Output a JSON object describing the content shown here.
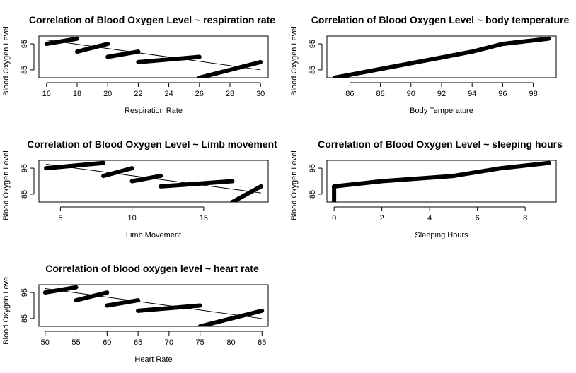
{
  "chart_data": [
    {
      "type": "scatter",
      "title": "Correlation of Blood Oxygen Level ~ respiration rate",
      "xlabel": "Respiration Rate",
      "ylabel": "Blood Oxygen Level",
      "xlim": [
        15.5,
        30.5
      ],
      "ylim": [
        82,
        98
      ],
      "xticks": [
        16,
        18,
        20,
        22,
        24,
        26,
        28,
        30
      ],
      "yticks": [
        85,
        95
      ],
      "series": [
        {
          "x": [
            16,
            18
          ],
          "y": [
            95,
            97
          ]
        },
        {
          "x": [
            18,
            20
          ],
          "y": [
            92,
            95
          ]
        },
        {
          "x": [
            20,
            22
          ],
          "y": [
            90,
            92
          ]
        },
        {
          "x": [
            22,
            26
          ],
          "y": [
            88,
            90
          ]
        },
        {
          "x": [
            26,
            30
          ],
          "y": [
            82,
            88
          ]
        }
      ],
      "trend": {
        "x": [
          16,
          30
        ],
        "y": [
          96.5,
          85
        ]
      }
    },
    {
      "type": "scatter",
      "title": "Correlation of Blood Oxygen Level ~ body temperature",
      "xlabel": "Body Temperature",
      "ylabel": "Blood Oxygen Level",
      "xlim": [
        84.5,
        99.5
      ],
      "ylim": [
        82,
        98
      ],
      "xticks": [
        86,
        88,
        90,
        92,
        94,
        96,
        98
      ],
      "yticks": [
        85,
        95
      ],
      "series": [
        {
          "x": [
            85,
            94,
            96,
            99
          ],
          "y": [
            82,
            92,
            95,
            97
          ]
        }
      ]
    },
    {
      "type": "scatter",
      "title": "Correlation of Blood Oxygen Level ~ Limb movement",
      "xlabel": "Limb Movement",
      "ylabel": "Blood Oxygen Level",
      "xlim": [
        3.5,
        19.5
      ],
      "ylim": [
        82,
        98
      ],
      "xticks": [
        5,
        10,
        15
      ],
      "yticks": [
        85,
        95
      ],
      "series": [
        {
          "x": [
            4,
            8
          ],
          "y": [
            95,
            97
          ]
        },
        {
          "x": [
            8,
            10
          ],
          "y": [
            92,
            95
          ]
        },
        {
          "x": [
            10,
            12
          ],
          "y": [
            90,
            92
          ]
        },
        {
          "x": [
            12,
            17
          ],
          "y": [
            88,
            90
          ]
        },
        {
          "x": [
            17,
            19
          ],
          "y": [
            82,
            88
          ]
        }
      ],
      "trend": {
        "x": [
          4,
          19
        ],
        "y": [
          96.5,
          85.5
        ]
      }
    },
    {
      "type": "scatter",
      "title": "Correlation of Blood Oxygen Level ~ sleeping hours",
      "xlabel": "Sleeping Hours",
      "ylabel": "Blood Oxygen Level",
      "xlim": [
        -0.3,
        9.3
      ],
      "ylim": [
        82,
        98
      ],
      "xticks": [
        0,
        2,
        4,
        6,
        8
      ],
      "yticks": [
        85,
        95
      ],
      "series": [
        {
          "x": [
            0,
            0
          ],
          "y": [
            82,
            88
          ]
        },
        {
          "x": [
            0,
            2,
            5,
            7,
            9
          ],
          "y": [
            88,
            90,
            92,
            95,
            97
          ]
        }
      ]
    },
    {
      "type": "scatter",
      "title": "Correlation of blood oxygen level ~ heart rate",
      "xlabel": "Heart Rate",
      "ylabel": "Blood Oxygen Level",
      "xlim": [
        49,
        86
      ],
      "ylim": [
        82,
        98
      ],
      "xticks": [
        50,
        55,
        60,
        65,
        70,
        75,
        80,
        85
      ],
      "yticks": [
        85,
        95
      ],
      "series": [
        {
          "x": [
            50,
            55
          ],
          "y": [
            95,
            97
          ]
        },
        {
          "x": [
            55,
            60
          ],
          "y": [
            92,
            95
          ]
        },
        {
          "x": [
            60,
            65
          ],
          "y": [
            90,
            92
          ]
        },
        {
          "x": [
            65,
            75
          ],
          "y": [
            88,
            90
          ]
        },
        {
          "x": [
            75,
            85
          ],
          "y": [
            82,
            88
          ]
        }
      ],
      "trend": {
        "x": [
          50,
          85
        ],
        "y": [
          96.5,
          85
        ]
      }
    }
  ]
}
